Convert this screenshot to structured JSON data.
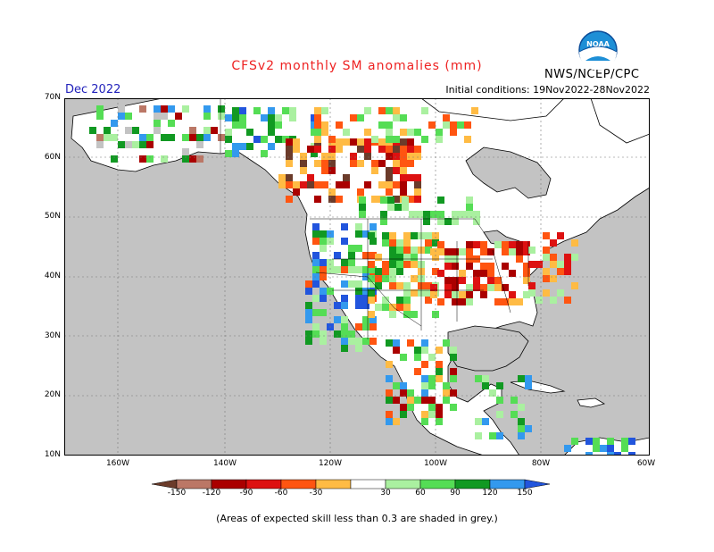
{
  "header": {
    "title": "CFSv2 monthly SM anomalies (mm)",
    "month": "Dec 2022",
    "initial_conditions": "Initial conditions: 19Nov2022-28Nov2022",
    "agency": "NWS/NCEP/CPC",
    "logo_text": "NOAA"
  },
  "map": {
    "lat_labels": [
      "70N",
      "60N",
      "50N",
      "40N",
      "30N",
      "20N",
      "10N"
    ],
    "lon_labels": [
      "160W",
      "140W",
      "120W",
      "100W",
      "80W",
      "60W"
    ]
  },
  "colorbar": {
    "labels": [
      "-150",
      "-120",
      "-90",
      "-60",
      "-30",
      "30",
      "60",
      "90",
      "120",
      "150"
    ],
    "colors": [
      "#6b3b2a",
      "#bb7766",
      "#aa0000",
      "#dd1111",
      "#ff5511",
      "#ffbb44",
      "#ffffff",
      "#aaf0a0",
      "#55dd55",
      "#119922",
      "#3399ee",
      "#2255dd"
    ]
  },
  "footer": {
    "note": "(Areas of expected skill less than 0.3 are shaded in grey.)"
  },
  "colors": {
    "ocean_grey": "#c3c3c3",
    "land_white": "#ffffff",
    "title_red": "#ee2222",
    "month_blue": "#2222bb"
  }
}
